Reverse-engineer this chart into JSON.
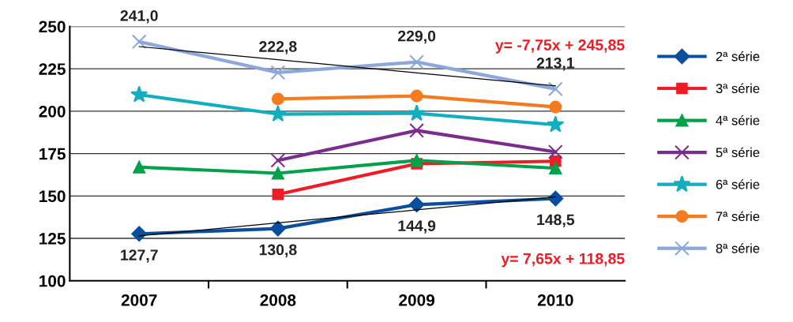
{
  "chart_data": {
    "type": "line",
    "categories": [
      "2007",
      "2008",
      "2009",
      "2010"
    ],
    "series": [
      {
        "name": "2ª série",
        "color": "#0a4f9e",
        "marker": "diamond",
        "values": [
          127.7,
          130.8,
          144.9,
          148.5
        ],
        "value_labels": [
          "127,7",
          "130,8",
          "144,9",
          "148,5"
        ]
      },
      {
        "name": "3ª série",
        "color": "#ee1c25",
        "marker": "square",
        "values": [
          null,
          151,
          169,
          170.5
        ]
      },
      {
        "name": "4ª série",
        "color": "#00a14b",
        "marker": "triangle",
        "values": [
          167,
          163.4,
          171,
          166.4
        ]
      },
      {
        "name": "5ª série",
        "color": "#7b2d8e",
        "marker": "cross",
        "values": [
          null,
          171,
          188.6,
          176
        ]
      },
      {
        "name": "6ª série",
        "color": "#12aec0",
        "marker": "star",
        "values": [
          209.7,
          198.3,
          198.7,
          192
        ]
      },
      {
        "name": "7ª série",
        "color": "#f47b20",
        "marker": "circle",
        "values": [
          null,
          207.2,
          209,
          202.5
        ]
      },
      {
        "name": "8ª série",
        "color": "#8ba7dc",
        "marker": "cross",
        "values": [
          241.0,
          222.8,
          229.0,
          213.1
        ],
        "value_labels": [
          "241,0",
          "222,8",
          "229,0",
          "213,1"
        ]
      },
      {
        "color": "#000000",
        "marker": "none",
        "values": [
          126.5,
          134.2,
          141.8,
          149.5
        ]
      },
      {
        "color": "#000000",
        "marker": "none",
        "values": [
          238.1,
          230.4,
          222.6,
          214.9
        ]
      }
    ],
    "annotations": [
      "y= -7,75x + 245,85",
      "y= 7,65x + 118,85"
    ],
    "ylim": [
      100,
      250
    ],
    "yticks": [
      100,
      125,
      150,
      175,
      200,
      225,
      250
    ],
    "grid": "y",
    "legend": "right"
  }
}
